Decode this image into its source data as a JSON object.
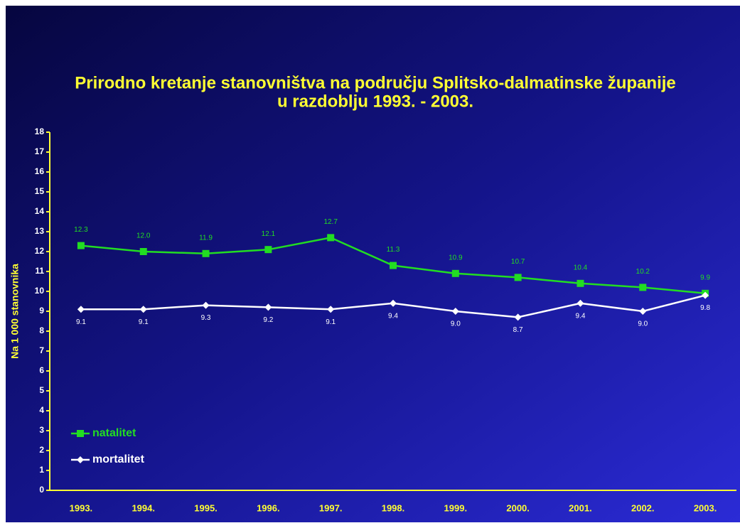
{
  "chart_data": {
    "type": "line",
    "title": "Prirodno kretanje stanovništva na području Splitsko-dalmatinske županije",
    "subtitle": "u razdoblju 1993. - 2003.",
    "y_label": "Na 1 000 stanovnika",
    "categories": [
      "1993.",
      "1994.",
      "1995.",
      "1996.",
      "1997.",
      "1998.",
      "1999.",
      "2000.",
      "2001.",
      "2002.",
      "2003."
    ],
    "series": [
      {
        "name": "natalitet",
        "color": "#22dd22",
        "marker": "square",
        "values": [
          12.3,
          12,
          11.9,
          12.1,
          12.7,
          11.3,
          10.9,
          10.7,
          10.4,
          10.2,
          9.9
        ],
        "value_labels": [
          "12.3",
          "12.0",
          "11.9",
          "12.1",
          "12.7",
          "11.3",
          "10.9",
          "10.7",
          "10.4",
          "10.2",
          "9.9"
        ]
      },
      {
        "name": "mortalitet",
        "color": "#ffffff",
        "marker": "diamond",
        "values": [
          9.1,
          9.1,
          9.3,
          9.2,
          9.1,
          9.4,
          9,
          8.7,
          9.4,
          9,
          9.8
        ],
        "value_labels": [
          "9.1",
          "9.1",
          "9.3",
          "9.2",
          "9.1",
          "9.4",
          "9.0",
          "8.7",
          "9.4",
          "9.0",
          "9.8"
        ]
      }
    ],
    "ylim": [
      0,
      18
    ],
    "yticks": [
      0,
      1,
      2,
      3,
      4,
      5,
      6,
      7,
      8,
      9,
      10,
      11,
      12,
      13,
      14,
      15,
      16,
      17,
      18
    ],
    "grid": false,
    "legend": "lower left"
  }
}
